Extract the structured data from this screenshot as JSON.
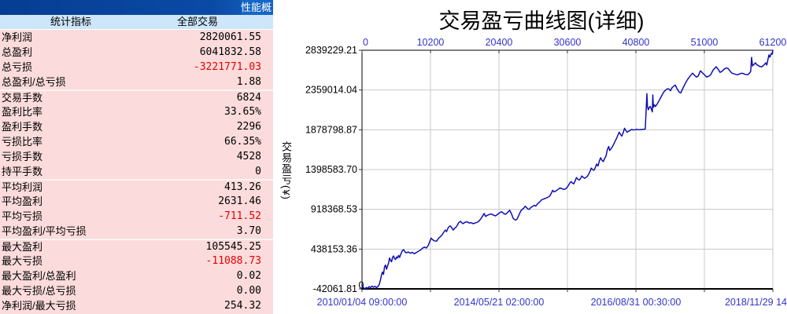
{
  "panel": {
    "titlebar_text": "性能概",
    "columns": [
      "统计指标",
      "全部交易"
    ],
    "rows": [
      {
        "label": "净利润",
        "value": "2820061.55",
        "neg": false,
        "sep": false
      },
      {
        "label": "总盈利",
        "value": "6041832.58",
        "neg": false,
        "sep": false
      },
      {
        "label": "总亏损",
        "value": "-3221771.03",
        "neg": true,
        "sep": false
      },
      {
        "label": "总盈利/总亏损",
        "value": "1.88",
        "neg": false,
        "sep": false
      },
      {
        "label": "交易手数",
        "value": "6824",
        "neg": false,
        "sep": true
      },
      {
        "label": "盈利比率",
        "value": "33.65%",
        "neg": false,
        "sep": false
      },
      {
        "label": "盈利手数",
        "value": "2296",
        "neg": false,
        "sep": false
      },
      {
        "label": "亏损比率",
        "value": "66.35%",
        "neg": false,
        "sep": false
      },
      {
        "label": "亏损手数",
        "value": "4528",
        "neg": false,
        "sep": false
      },
      {
        "label": "持平手数",
        "value": "0",
        "neg": false,
        "sep": false
      },
      {
        "label": "平均利润",
        "value": "413.26",
        "neg": false,
        "sep": true
      },
      {
        "label": "平均盈利",
        "value": "2631.46",
        "neg": false,
        "sep": false
      },
      {
        "label": "平均亏损",
        "value": "-711.52",
        "neg": true,
        "sep": false
      },
      {
        "label": "平均盈利/平均亏损",
        "value": "3.70",
        "neg": false,
        "sep": false
      },
      {
        "label": "最大盈利",
        "value": "105545.25",
        "neg": false,
        "sep": true
      },
      {
        "label": "最大亏损",
        "value": "-11088.73",
        "neg": true,
        "sep": false
      },
      {
        "label": "最大盈利/总盈利",
        "value": "0.02",
        "neg": false,
        "sep": false
      },
      {
        "label": "最大亏损/总亏损",
        "value": "0.00",
        "neg": false,
        "sep": false
      },
      {
        "label": "净利润/最大亏损",
        "value": "254.32",
        "neg": false,
        "sep": false
      }
    ],
    "colors": {
      "titlebar": "#0A4AA5",
      "titlebar_tab": "#1565C6",
      "header_bg": "#CDE6FA",
      "row_bg": "#FBDBDB",
      "negative_text": "#E60000"
    }
  },
  "chart_data": {
    "type": "line",
    "title": "交易盈亏曲线图(详细)",
    "ylabel": "交易盈亏(¥)",
    "zero_label": "0",
    "xlim": [
      0,
      61200
    ],
    "ylim": [
      -42061.81,
      2839229.21
    ],
    "grid": true,
    "x_top_ticks": [
      0,
      10200,
      20400,
      30600,
      40800,
      51000,
      61200
    ],
    "y_tick_labels": [
      "2839229.21",
      "2359014.04",
      "1878798.87",
      "1398583.70",
      "918368.53",
      "438153.36",
      "-42061.81"
    ],
    "x_bottom_labels": [
      {
        "trade": 0,
        "text": "2010/01/04 09:00:00"
      },
      {
        "trade": 20400,
        "text": "2014/05/21 02:00:00"
      },
      {
        "trade": 40800,
        "text": "2016/08/31 00:30:00"
      },
      {
        "trade": 61200,
        "text": "2018/11/29 14"
      }
    ],
    "line_color": "#0F0FB4",
    "axis_label_color": "#3232CD",
    "grid_color": "#C8C8C8",
    "series": [
      {
        "name": "交易盈亏",
        "points": [
          [
            0,
            0
          ],
          [
            250,
            -30000
          ],
          [
            450,
            -42062
          ],
          [
            650,
            -25000
          ],
          [
            850,
            -36000
          ],
          [
            1050,
            -14000
          ],
          [
            1250,
            -28000
          ],
          [
            1500,
            -8000
          ],
          [
            1700,
            -22000
          ],
          [
            1950,
            -12000
          ],
          [
            2150,
            -26000
          ],
          [
            2350,
            -16000
          ],
          [
            2550,
            8000
          ],
          [
            2750,
            70000
          ],
          [
            2900,
            125000
          ],
          [
            3050,
            162000
          ],
          [
            3200,
            132000
          ],
          [
            3350,
            225000
          ],
          [
            3500,
            246000
          ],
          [
            3650,
            196000
          ],
          [
            3800,
            232000
          ],
          [
            3950,
            268000
          ],
          [
            4100,
            331000
          ],
          [
            4250,
            300000
          ],
          [
            4400,
            286000
          ],
          [
            4550,
            338000
          ],
          [
            4700,
            356000
          ],
          [
            4850,
            322000
          ],
          [
            5000,
            312000
          ],
          [
            5150,
            344000
          ],
          [
            5300,
            330000
          ],
          [
            5450,
            362000
          ],
          [
            5600,
            338000
          ],
          [
            5800,
            382000
          ],
          [
            6000,
            420000
          ],
          [
            6200,
            431000
          ],
          [
            6400,
            404000
          ],
          [
            6600,
            393000
          ],
          [
            6900,
            403000
          ],
          [
            7200,
            388000
          ],
          [
            7500,
            399000
          ],
          [
            7800,
            383000
          ],
          [
            8100,
            398000
          ],
          [
            8400,
            412000
          ],
          [
            8700,
            426000
          ],
          [
            9000,
            449000
          ],
          [
            9300,
            462000
          ],
          [
            9600,
            452000
          ],
          [
            9900,
            488000
          ],
          [
            10100,
            530000
          ],
          [
            10300,
            571000
          ],
          [
            10500,
            552000
          ],
          [
            10800,
            538000
          ],
          [
            11100,
            533000
          ],
          [
            11400,
            568000
          ],
          [
            11600,
            583000
          ],
          [
            11900,
            607000
          ],
          [
            12200,
            645000
          ],
          [
            12400,
            668000
          ],
          [
            12600,
            651000
          ],
          [
            12800,
            692000
          ],
          [
            13000,
            712000
          ],
          [
            13200,
            716000
          ],
          [
            13400,
            691000
          ],
          [
            13600,
            668000
          ],
          [
            13800,
            690000
          ],
          [
            14000,
            702000
          ],
          [
            14200,
            726000
          ],
          [
            14400,
            757000
          ],
          [
            14650,
            774000
          ],
          [
            14850,
            757000
          ],
          [
            15050,
            746000
          ],
          [
            15350,
            763000
          ],
          [
            15650,
            768000
          ],
          [
            15950,
            753000
          ],
          [
            16250,
            758000
          ],
          [
            16550,
            746000
          ],
          [
            16850,
            753000
          ],
          [
            17150,
            762000
          ],
          [
            17450,
            779000
          ],
          [
            17750,
            809000
          ],
          [
            18050,
            850000
          ],
          [
            18200,
            869000
          ],
          [
            18400,
            833000
          ],
          [
            18700,
            847000
          ],
          [
            19000,
            858000
          ],
          [
            19300,
            862000
          ],
          [
            19600,
            847000
          ],
          [
            19900,
            839000
          ],
          [
            20200,
            858000
          ],
          [
            20500,
            877000
          ],
          [
            20800,
            890000
          ],
          [
            21100,
            868000
          ],
          [
            21400,
            858000
          ],
          [
            21700,
            881000
          ],
          [
            22000,
            908000
          ],
          [
            22300,
            858000
          ],
          [
            22500,
            812000
          ],
          [
            22700,
            796000
          ],
          [
            22900,
            789000
          ],
          [
            23100,
            801000
          ],
          [
            23300,
            836000
          ],
          [
            23500,
            872000
          ],
          [
            23700,
            906000
          ],
          [
            23900,
            921000
          ],
          [
            24100,
            933000
          ],
          [
            24300,
            956000
          ],
          [
            24500,
            941000
          ],
          [
            24700,
            923000
          ],
          [
            24900,
            918000
          ],
          [
            25150,
            941000
          ],
          [
            25400,
            953000
          ],
          [
            25650,
            966000
          ],
          [
            25900,
            958000
          ],
          [
            26150,
            986000
          ],
          [
            26450,
            1006000
          ],
          [
            26750,
            1033000
          ],
          [
            27050,
            1043000
          ],
          [
            27350,
            1053000
          ],
          [
            27650,
            1063000
          ],
          [
            27950,
            1076000
          ],
          [
            28200,
            1111000
          ],
          [
            28400,
            1148000
          ],
          [
            28600,
            1129000
          ],
          [
            28900,
            1141000
          ],
          [
            29200,
            1159000
          ],
          [
            29500,
            1177000
          ],
          [
            29800,
            1166000
          ],
          [
            30100,
            1159000
          ],
          [
            30400,
            1169000
          ],
          [
            30700,
            1201000
          ],
          [
            31000,
            1241000
          ],
          [
            31150,
            1254000
          ],
          [
            31350,
            1236000
          ],
          [
            31550,
            1226000
          ],
          [
            31750,
            1263000
          ],
          [
            31950,
            1302000
          ],
          [
            32150,
            1283000
          ],
          [
            32350,
            1273000
          ],
          [
            32550,
            1289000
          ],
          [
            32750,
            1321000
          ],
          [
            32950,
            1306000
          ],
          [
            33150,
            1293000
          ],
          [
            33350,
            1303000
          ],
          [
            33550,
            1316000
          ],
          [
            33750,
            1341000
          ],
          [
            33950,
            1376000
          ],
          [
            34150,
            1416000
          ],
          [
            34350,
            1399000
          ],
          [
            34550,
            1389000
          ],
          [
            34750,
            1421000
          ],
          [
            34950,
            1465000
          ],
          [
            35150,
            1441000
          ],
          [
            35350,
            1501000
          ],
          [
            35550,
            1541000
          ],
          [
            35750,
            1511000
          ],
          [
            35950,
            1495000
          ],
          [
            36150,
            1533000
          ],
          [
            36350,
            1561000
          ],
          [
            36550,
            1642000
          ],
          [
            36750,
            1677000
          ],
          [
            36900,
            1629000
          ],
          [
            37100,
            1649000
          ],
          [
            37300,
            1673000
          ],
          [
            37500,
            1707000
          ],
          [
            37700,
            1741000
          ],
          [
            37900,
            1773000
          ],
          [
            38100,
            1811000
          ],
          [
            38300,
            1850000
          ],
          [
            38500,
            1823000
          ],
          [
            38700,
            1802000
          ],
          [
            38900,
            1841000
          ],
          [
            39100,
            1897000
          ],
          [
            39300,
            1871000
          ],
          [
            39500,
            1850000
          ],
          [
            39700,
            1861000
          ],
          [
            39900,
            1869000
          ],
          [
            40150,
            1883000
          ],
          [
            40400,
            1877000
          ],
          [
            40700,
            1880000
          ],
          [
            41000,
            1884000
          ],
          [
            41300,
            1879000
          ],
          [
            41600,
            1882000
          ],
          [
            41900,
            1885000
          ],
          [
            42200,
            1887000
          ],
          [
            42440,
            2315000
          ],
          [
            42520,
            2160000
          ],
          [
            42650,
            2120000
          ],
          [
            42800,
            2150000
          ],
          [
            42950,
            2161000
          ],
          [
            43100,
            2130000
          ],
          [
            43250,
            2095000
          ],
          [
            43320,
            2300000
          ],
          [
            43400,
            2150000
          ],
          [
            43550,
            2181000
          ],
          [
            43700,
            2160000
          ],
          [
            43850,
            2175000
          ],
          [
            44050,
            2200000
          ],
          [
            44250,
            2230000
          ],
          [
            44450,
            2260000
          ],
          [
            44650,
            2290000
          ],
          [
            44850,
            2320000
          ],
          [
            45050,
            2345000
          ],
          [
            45250,
            2360000
          ],
          [
            45450,
            2372000
          ],
          [
            45720,
            2372000
          ],
          [
            45950,
            2350000
          ],
          [
            46200,
            2390000
          ],
          [
            46660,
            2419000
          ],
          [
            46900,
            2380000
          ],
          [
            47250,
            2333000
          ],
          [
            47480,
            2325000
          ],
          [
            47800,
            2380000
          ],
          [
            48100,
            2430000
          ],
          [
            48420,
            2477000
          ],
          [
            48800,
            2520000
          ],
          [
            49240,
            2562000
          ],
          [
            49600,
            2530000
          ],
          [
            49830,
            2515000
          ],
          [
            50100,
            2530000
          ],
          [
            50410,
            2591000
          ],
          [
            50800,
            2560000
          ],
          [
            51100,
            2535000
          ],
          [
            51350,
            2515000
          ],
          [
            51700,
            2528000
          ],
          [
            51940,
            2543000
          ],
          [
            52300,
            2600000
          ],
          [
            52760,
            2639000
          ],
          [
            53050,
            2610000
          ],
          [
            53340,
            2572000
          ],
          [
            53700,
            2590000
          ],
          [
            53930,
            2610000
          ],
          [
            54200,
            2625000
          ],
          [
            54520,
            2620000
          ],
          [
            54800,
            2590000
          ],
          [
            55100,
            2562000
          ],
          [
            55500,
            2552000
          ],
          [
            55920,
            2543000
          ],
          [
            56300,
            2555000
          ],
          [
            56630,
            2562000
          ],
          [
            57000,
            2550000
          ],
          [
            57450,
            2543000
          ],
          [
            57700,
            2560000
          ],
          [
            57900,
            2585000
          ],
          [
            58030,
            2753000
          ],
          [
            58180,
            2650000
          ],
          [
            58400,
            2670000
          ],
          [
            58620,
            2687000
          ],
          [
            58800,
            2665000
          ],
          [
            58970,
            2658000
          ],
          [
            59200,
            2645000
          ],
          [
            59560,
            2639000
          ],
          [
            59850,
            2660000
          ],
          [
            60140,
            2687000
          ],
          [
            60300,
            2660000
          ],
          [
            60610,
            2782000
          ],
          [
            60750,
            2755000
          ],
          [
            60960,
            2801000
          ],
          [
            61080,
            2790000
          ],
          [
            61200,
            2839229.21
          ]
        ]
      }
    ]
  }
}
